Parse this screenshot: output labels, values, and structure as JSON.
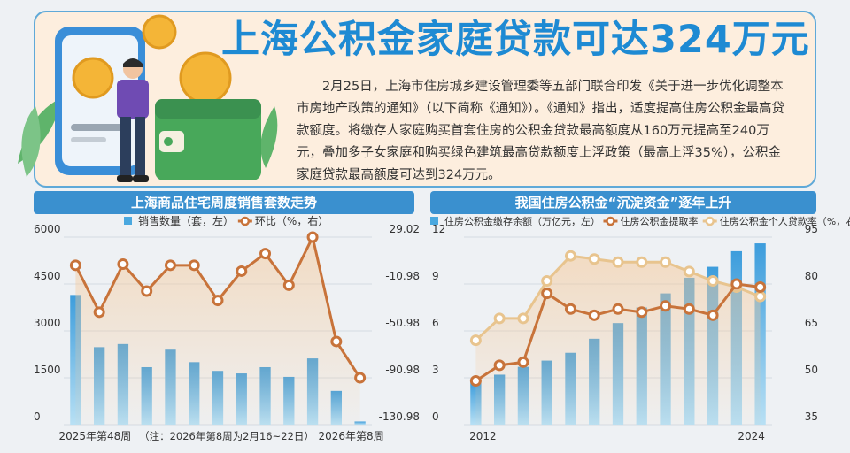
{
  "header": {
    "title": "上海公积金家庭贷款可达324万元",
    "lead": "2月25日，上海市住房城乡建设管理委等五部门联合印发《关于进一步优化调整本市房地产政策的通知》（以下简称《通知》）。《通知》指出，适度提高住房公积金最高贷款额度。将缴存人家庭购买首套住房的公积金贷款最高额度从160万元提高至240万元，叠加多子女家庭和购买绿色建筑最高贷款额度上浮政策（最高上浮35%），公积金家庭贷款最高额度可达到324万元。"
  },
  "colors": {
    "accent": "#1e8ad3",
    "bar": "#5db8e6",
    "line": "#c8733a",
    "line2": "#e8c48e"
  },
  "chart_data": [
    {
      "type": "bar",
      "title": "上海商品住宅周度销售套数走势",
      "legend": [
        "销售数量（套，左）",
        "环比（%，右）"
      ],
      "x_start_label": "2025年第48周",
      "x_end_label": "2026年第8周",
      "note": "（注：2026年第8周为2月16~22日）",
      "n": 13,
      "bar_values": [
        4150,
        2480,
        2580,
        1840,
        2400,
        2000,
        1720,
        1640,
        1840,
        1530,
        2120,
        1080,
        100
      ],
      "line_values": [
        5,
        -35,
        6,
        -17,
        5,
        5,
        -25,
        0,
        15,
        -12,
        29,
        -60,
        -91
      ],
      "ylim_left": [
        0,
        6000
      ],
      "yticks_left": [
        0,
        1500,
        3000,
        4500,
        6000
      ],
      "ylim_right": [
        -130.98,
        29.02
      ],
      "yticks_right": [
        -130.98,
        -90.98,
        -50.98,
        -10.98,
        29.02
      ]
    },
    {
      "type": "bar",
      "title": "我国住房公积金“沉淀资金”逐年上升",
      "legend": [
        "住房公积金缴存余额（万亿元，左）",
        "住房公积金提取率",
        "住房公积金个人贷款率（%，右）"
      ],
      "x_start_label": "2012",
      "x_end_label": "2024",
      "n": 13,
      "bar_values": [
        2.7,
        3.2,
        3.7,
        4.1,
        4.6,
        5.5,
        6.5,
        7.5,
        8.4,
        9.4,
        10.1,
        11.1,
        11.6
      ],
      "line_values_1": [
        49,
        54,
        55,
        77,
        72,
        70,
        72,
        71,
        73,
        72,
        70,
        80,
        79
      ],
      "line_values_2": [
        62,
        69,
        69,
        81,
        89,
        88,
        87,
        87,
        87,
        84,
        81,
        79,
        76
      ],
      "ylim_left": [
        0,
        12
      ],
      "yticks_left": [
        0,
        3,
        6,
        9,
        12
      ],
      "ylim_right": [
        35,
        95
      ],
      "yticks_right": [
        35,
        50,
        65,
        80,
        95
      ]
    }
  ]
}
